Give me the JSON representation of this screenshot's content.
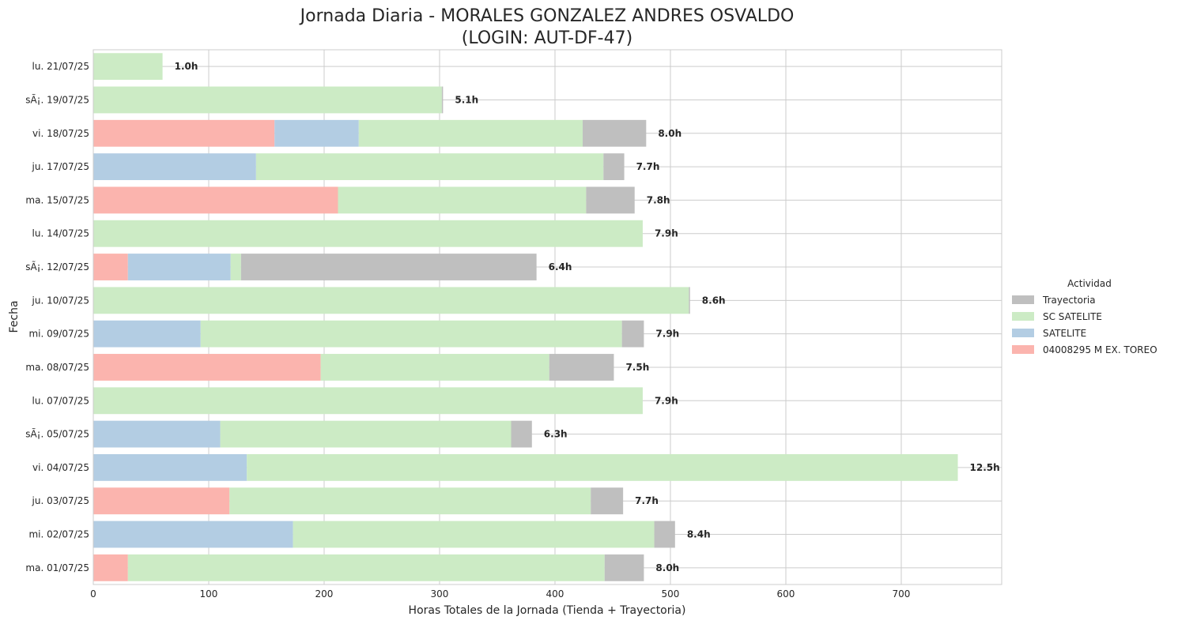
{
  "chart_data": {
    "type": "bar",
    "orientation": "horizontal",
    "stacked": true,
    "title_line1": "Jornada Diaria - MORALES GONZALEZ ANDRES OSVALDO",
    "title_line2": "(LOGIN: AUT-DF-47)",
    "xlabel": "Horas Totales de la Jornada (Tienda + Trayectoria)",
    "ylabel": "Fecha",
    "xlim": [
      0,
      787
    ],
    "xticks": [
      0,
      100,
      200,
      300,
      400,
      500,
      600,
      700
    ],
    "grid": true,
    "legend": {
      "title": "Actividad",
      "placement": "center-right",
      "entries": [
        "Trayectoria",
        "SC SATELITE",
        "SATELITE",
        "04008295 M EX. TOREO"
      ]
    },
    "stack_order": [
      "04008295 M EX. TOREO",
      "SATELITE",
      "SC SATELITE",
      "Trayectoria"
    ],
    "colors": {
      "Trayectoria": "#bfbfbf",
      "SC SATELITE": "#ccebc5",
      "SATELITE": "#b3cde3",
      "04008295 M EX. TOREO": "#fbb4ae"
    },
    "categories": [
      "lu. 21/07/25",
      "sÃ¡. 19/07/25",
      "vi. 18/07/25",
      "ju. 17/07/25",
      "ma. 15/07/25",
      "lu. 14/07/25",
      "sÃ¡. 12/07/25",
      "ju. 10/07/25",
      "mi. 09/07/25",
      "ma. 08/07/25",
      "lu. 07/07/25",
      "sÃ¡. 05/07/25",
      "vi. 04/07/25",
      "ju. 03/07/25",
      "mi. 02/07/25",
      "ma. 01/07/25"
    ],
    "series": [
      {
        "name": "04008295 M EX. TOREO",
        "values": [
          0,
          0,
          157,
          0,
          212,
          0,
          30,
          0,
          0,
          197,
          0,
          0,
          0,
          118,
          0,
          30
        ]
      },
      {
        "name": "SATELITE",
        "values": [
          0,
          0,
          73,
          141,
          0,
          0,
          89,
          0,
          93,
          0,
          0,
          110,
          133,
          0,
          173,
          0
        ]
      },
      {
        "name": "SC SATELITE",
        "values": [
          60,
          302,
          194,
          301,
          215,
          476,
          9,
          516,
          365,
          198,
          476,
          252,
          616,
          313,
          313,
          413
        ]
      },
      {
        "name": "Trayectoria",
        "values": [
          0,
          1,
          55,
          18,
          42,
          0,
          256,
          1,
          19,
          56,
          0,
          18,
          0,
          28,
          18,
          34
        ]
      }
    ],
    "bar_labels": [
      "1.0h",
      "5.1h",
      "8.0h",
      "7.7h",
      "7.8h",
      "7.9h",
      "6.4h",
      "8.6h",
      "7.9h",
      "7.5h",
      "7.9h",
      "6.3h",
      "12.5h",
      "7.7h",
      "8.4h",
      "8.0h"
    ]
  }
}
